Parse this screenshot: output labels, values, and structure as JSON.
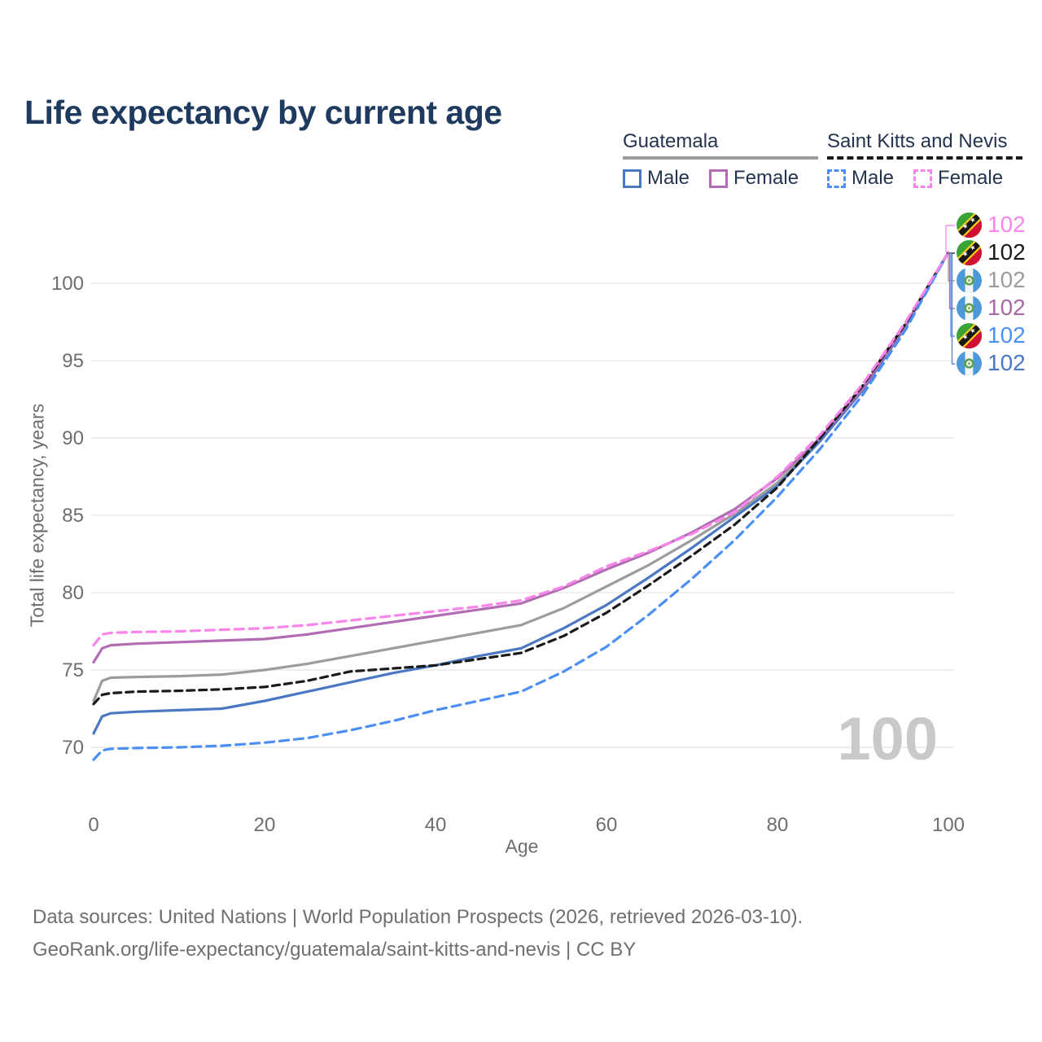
{
  "title": "Life expectancy by current age",
  "legend": {
    "groups": [
      {
        "label": "Guatemala",
        "underline_style": "solid",
        "underline_color": "#9c9c9c",
        "items": [
          {
            "label": "Male",
            "color": "#4a78c2",
            "line_style": "solid"
          },
          {
            "label": "Female",
            "color": "#b26cb2",
            "line_style": "solid"
          }
        ]
      },
      {
        "label": "Saint Kitts and Nevis",
        "underline_style": "dashed",
        "underline_color": "#1a1a1a",
        "items": [
          {
            "label": "Male",
            "color": "#4b8ff5",
            "line_style": "dashed"
          },
          {
            "label": "Female",
            "color": "#f985ea",
            "line_style": "dashed"
          }
        ]
      }
    ]
  },
  "chart_data": {
    "type": "line",
    "title": "Life expectancy by current age",
    "xlabel": "Age",
    "ylabel": "Total life expectancy, years",
    "x_ticks": [
      0,
      20,
      40,
      60,
      80,
      100
    ],
    "y_ticks": [
      70,
      75,
      80,
      85,
      90,
      95,
      100
    ],
    "xlim": [
      0,
      100
    ],
    "ylim": [
      68.5,
      102.5
    ],
    "grid": "horizontal-only",
    "legend_position": "top-right",
    "ages": [
      0,
      1,
      2,
      5,
      10,
      15,
      20,
      25,
      30,
      35,
      40,
      45,
      50,
      55,
      60,
      65,
      70,
      75,
      80,
      85,
      90,
      95,
      100
    ],
    "series": [
      {
        "id": "guatemala-total",
        "name": "Guatemala",
        "color": "#9c9c9c",
        "line_style": "solid",
        "values": [
          73.0,
          74.3,
          74.5,
          74.55,
          74.6,
          74.7,
          75.0,
          75.4,
          75.9,
          76.4,
          76.9,
          77.4,
          77.9,
          79.0,
          80.4,
          81.8,
          83.4,
          85.1,
          87.1,
          89.9,
          93.15,
          97.25,
          102
        ]
      },
      {
        "id": "guatemala-male",
        "name": "Guatemala Male",
        "color": "#4a78c2",
        "line_style": "solid",
        "values": [
          70.9,
          72.0,
          72.2,
          72.3,
          72.4,
          72.5,
          73.0,
          73.6,
          74.2,
          74.8,
          75.3,
          75.9,
          76.4,
          77.7,
          79.2,
          81.0,
          82.9,
          84.9,
          86.9,
          89.8,
          93.1,
          97.2,
          102
        ]
      },
      {
        "id": "guatemala-female",
        "name": "Guatemala Female",
        "color": "#b26cb2",
        "line_style": "solid",
        "values": [
          75.5,
          76.4,
          76.6,
          76.7,
          76.8,
          76.9,
          77.0,
          77.3,
          77.7,
          78.1,
          78.5,
          78.9,
          79.3,
          80.3,
          81.5,
          82.6,
          83.9,
          85.4,
          87.4,
          90.0,
          93.2,
          97.3,
          102
        ]
      },
      {
        "id": "saint-kitts-and-nevis-total",
        "name": "Saint Kitts and Nevis",
        "color": "#1a1a1a",
        "line_style": "dashed",
        "values": [
          72.8,
          73.4,
          73.5,
          73.6,
          73.65,
          73.75,
          73.9,
          74.3,
          74.9,
          75.1,
          75.3,
          75.7,
          76.1,
          77.2,
          78.7,
          80.5,
          82.4,
          84.4,
          86.8,
          90.0,
          93.4,
          97.4,
          102
        ]
      },
      {
        "id": "saint-kitts-and-nevis-male",
        "name": "Saint Kitts and Nevis Male",
        "color": "#4b8ff5",
        "line_style": "dashed",
        "values": [
          69.2,
          69.8,
          69.9,
          69.95,
          70.0,
          70.1,
          70.3,
          70.6,
          71.1,
          71.7,
          72.4,
          73.0,
          73.6,
          74.9,
          76.5,
          78.6,
          80.9,
          83.4,
          86.2,
          89.3,
          92.8,
          97.0,
          102
        ]
      },
      {
        "id": "saint-kitts-and-nevis-female",
        "name": "Saint Kitts and Nevis Female",
        "color": "#f985ea",
        "line_style": "dashed",
        "values": [
          76.6,
          77.3,
          77.4,
          77.45,
          77.5,
          77.6,
          77.7,
          77.9,
          78.2,
          78.5,
          78.8,
          79.1,
          79.5,
          80.4,
          81.7,
          82.7,
          83.8,
          85.2,
          87.5,
          90.2,
          93.5,
          97.5,
          102
        ]
      }
    ]
  },
  "right_labels": [
    {
      "flag": "saint-kitts-and-nevis",
      "series": "Saint Kitts and Nevis Female",
      "value": "102",
      "color": "#f985ea"
    },
    {
      "flag": "saint-kitts-and-nevis",
      "series": "Saint Kitts and Nevis",
      "value": "102",
      "color": "#1a1a1a"
    },
    {
      "flag": "guatemala",
      "series": "Guatemala",
      "value": "102",
      "color": "#9c9c9c"
    },
    {
      "flag": "guatemala",
      "series": "Guatemala Female",
      "value": "102",
      "color": "#a868a8"
    },
    {
      "flag": "saint-kitts-and-nevis",
      "series": "Saint Kitts and Nevis Male",
      "value": "102",
      "color": "#4b8ff5"
    },
    {
      "flag": "guatemala",
      "series": "Guatemala Male",
      "value": "102",
      "color": "#4a78c2"
    }
  ],
  "watermark": "100",
  "footer": {
    "line1": "Data sources: United Nations | World Population Prospects (2026, retrieved 2026-03-10).",
    "line2": "GeoRank.org/life-expectancy/guatemala/saint-kitts-and-nevis | CC BY"
  },
  "colors": {
    "title_text": "#1e3a5f",
    "legend_text": "#24344f",
    "axis_text": "#6e6e6e",
    "gridline": "#e9e9e9",
    "watermark": "#c9c9c9",
    "footer_text": "#6f6f6f"
  }
}
